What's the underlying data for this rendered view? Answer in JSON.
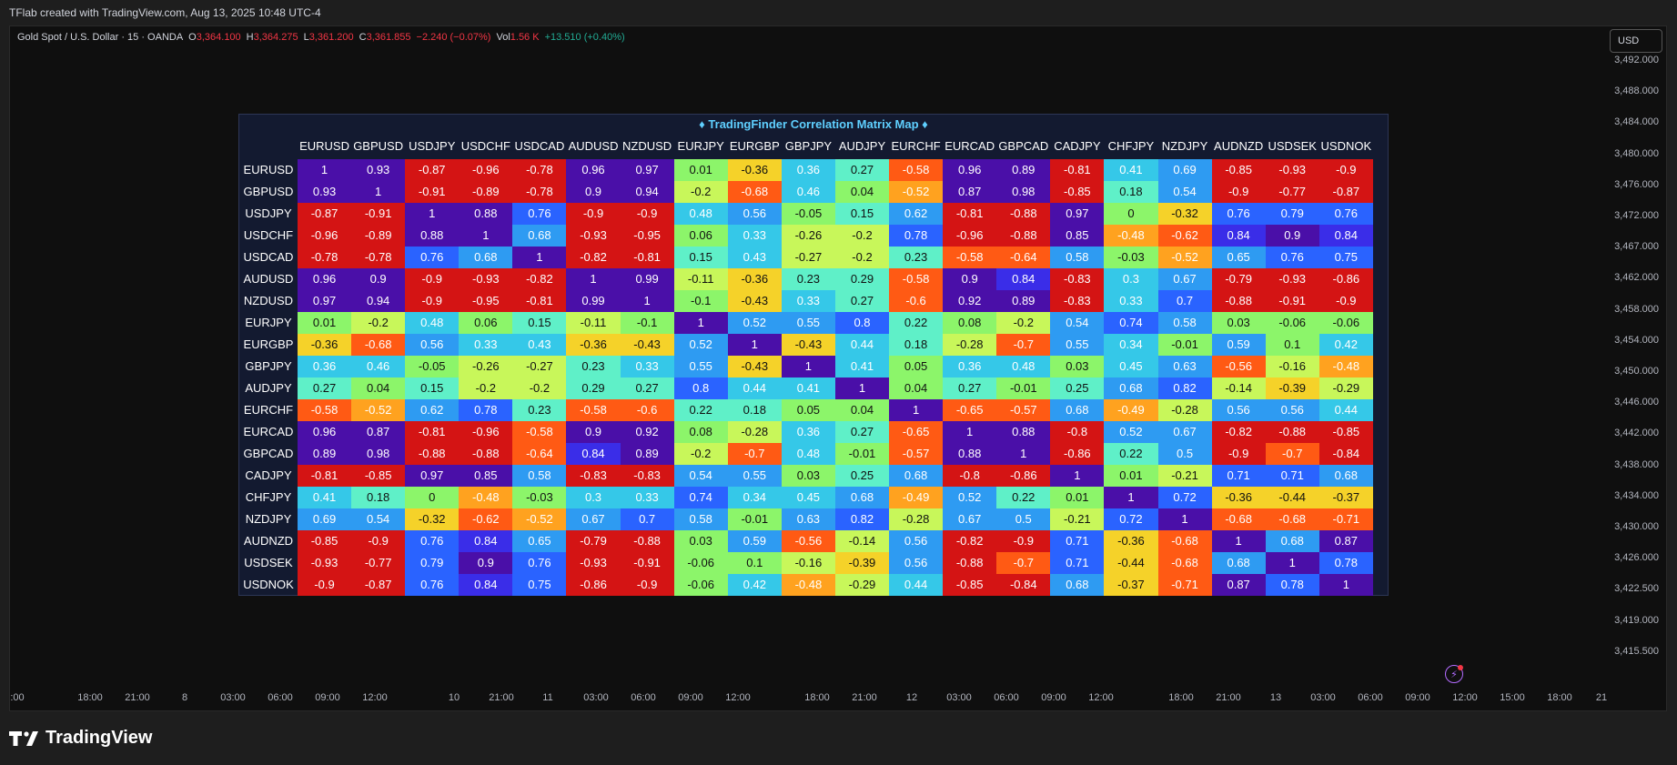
{
  "topbar": {
    "text": "TFlab created with TradingView.com, Aug 13, 2025 10:48 UTC-4"
  },
  "legend": {
    "symbol": "Gold Spot / U.S. Dollar · 15 · OANDA",
    "o_label": "O",
    "o_value": "3,364.100",
    "h_label": "H",
    "h_value": "3,364.275",
    "l_label": "L",
    "l_value": "3,361.200",
    "c_label": "C",
    "c_value": "3,361.855",
    "change": "−2.240 (−0.07%)",
    "vol_label": "Vol",
    "vol_value": "1.56 K",
    "vol_change": "+13.510 (+0.40%)"
  },
  "currency_button": "USD",
  "price_axis": [
    "3,492.000",
    "3,488.000",
    "3,484.000",
    "3,480.000",
    "3,476.000",
    "3,472.000",
    "3,467.000",
    "3,462.000",
    "3,458.000",
    "3,454.000",
    "3,450.000",
    "3,446.000",
    "3,442.000",
    "3,438.000",
    "3,434.000",
    "3,430.000",
    "3,426.000",
    "3,422.500",
    "3,419.000",
    "3,415.500"
  ],
  "time_axis": [
    {
      "label": ":00",
      "x": 8
    },
    {
      "label": "18:00",
      "x": 88
    },
    {
      "label": "21:00",
      "x": 140
    },
    {
      "label": "8",
      "x": 192
    },
    {
      "label": "03:00",
      "x": 245
    },
    {
      "label": "06:00",
      "x": 297
    },
    {
      "label": "09:00",
      "x": 349
    },
    {
      "label": "12:00",
      "x": 401
    },
    {
      "label": "10",
      "x": 488
    },
    {
      "label": "21:00",
      "x": 540
    },
    {
      "label": "11",
      "x": 591
    },
    {
      "label": "03:00",
      "x": 644
    },
    {
      "label": "06:00",
      "x": 696
    },
    {
      "label": "09:00",
      "x": 748
    },
    {
      "label": "12:00",
      "x": 800
    },
    {
      "label": "18:00",
      "x": 887
    },
    {
      "label": "21:00",
      "x": 939
    },
    {
      "label": "12",
      "x": 991
    },
    {
      "label": "03:00",
      "x": 1043
    },
    {
      "label": "06:00",
      "x": 1095
    },
    {
      "label": "09:00",
      "x": 1147
    },
    {
      "label": "12:00",
      "x": 1199
    },
    {
      "label": "18:00",
      "x": 1287
    },
    {
      "label": "21:00",
      "x": 1339
    },
    {
      "label": "13",
      "x": 1391
    },
    {
      "label": "03:00",
      "x": 1443
    },
    {
      "label": "06:00",
      "x": 1495
    },
    {
      "label": "09:00",
      "x": 1547
    },
    {
      "label": "12:00",
      "x": 1599
    },
    {
      "label": "15:00",
      "x": 1651
    },
    {
      "label": "18:00",
      "x": 1703
    },
    {
      "label": "21",
      "x": 1749
    }
  ],
  "matrix": {
    "title": "♦ TradingFinder Correlation Matrix Map ♦",
    "symbols": [
      "EURUSD",
      "GBPUSD",
      "USDJPY",
      "USDCHF",
      "USDCAD",
      "AUDUSD",
      "NZDUSD",
      "EURJPY",
      "EURGBP",
      "GBPJPY",
      "AUDJPY",
      "EURCHF",
      "EURCAD",
      "GBPCAD",
      "CADJPY",
      "CHFJPY",
      "NZDJPY",
      "AUDNZD",
      "USDSEK",
      "USDNOK"
    ],
    "values": [
      [
        "1",
        "0.93",
        "-0.87",
        "-0.96",
        "-0.78",
        "0.96",
        "0.97",
        "0.01",
        "-0.36",
        "0.36",
        "0.27",
        "-0.58",
        "0.96",
        "0.89",
        "-0.81",
        "0.41",
        "0.69",
        "-0.85",
        "-0.93",
        "-0.9"
      ],
      [
        "0.93",
        "1",
        "-0.91",
        "-0.89",
        "-0.78",
        "0.9",
        "0.94",
        "-0.2",
        "-0.68",
        "0.46",
        "0.04",
        "-0.52",
        "0.87",
        "0.98",
        "-0.85",
        "0.18",
        "0.54",
        "-0.9",
        "-0.77",
        "-0.87"
      ],
      [
        "-0.87",
        "-0.91",
        "1",
        "0.88",
        "0.76",
        "-0.9",
        "-0.9",
        "0.48",
        "0.56",
        "-0.05",
        "0.15",
        "0.62",
        "-0.81",
        "-0.88",
        "0.97",
        "0",
        "-0.32",
        "0.76",
        "0.79",
        "0.76"
      ],
      [
        "-0.96",
        "-0.89",
        "0.88",
        "1",
        "0.68",
        "-0.93",
        "-0.95",
        "0.06",
        "0.33",
        "-0.26",
        "-0.2",
        "0.78",
        "-0.96",
        "-0.88",
        "0.85",
        "-0.48",
        "-0.62",
        "0.84",
        "0.9",
        "0.84"
      ],
      [
        "-0.78",
        "-0.78",
        "0.76",
        "0.68",
        "1",
        "-0.82",
        "-0.81",
        "0.15",
        "0.43",
        "-0.27",
        "-0.2",
        "0.23",
        "-0.58",
        "-0.64",
        "0.58",
        "-0.03",
        "-0.52",
        "0.65",
        "0.76",
        "0.75"
      ],
      [
        "0.96",
        "0.9",
        "-0.9",
        "-0.93",
        "-0.82",
        "1",
        "0.99",
        "-0.11",
        "-0.36",
        "0.23",
        "0.29",
        "-0.58",
        "0.9",
        "0.84",
        "-0.83",
        "0.3",
        "0.67",
        "-0.79",
        "-0.93",
        "-0.86"
      ],
      [
        "0.97",
        "0.94",
        "-0.9",
        "-0.95",
        "-0.81",
        "0.99",
        "1",
        "-0.1",
        "-0.43",
        "0.33",
        "0.27",
        "-0.6",
        "0.92",
        "0.89",
        "-0.83",
        "0.33",
        "0.7",
        "-0.88",
        "-0.91",
        "-0.9"
      ],
      [
        "0.01",
        "-0.2",
        "0.48",
        "0.06",
        "0.15",
        "-0.11",
        "-0.1",
        "1",
        "0.52",
        "0.55",
        "0.8",
        "0.22",
        "0.08",
        "-0.2",
        "0.54",
        "0.74",
        "0.58",
        "0.03",
        "-0.06",
        "-0.06"
      ],
      [
        "-0.36",
        "-0.68",
        "0.56",
        "0.33",
        "0.43",
        "-0.36",
        "-0.43",
        "0.52",
        "1",
        "-0.43",
        "0.44",
        "0.18",
        "-0.28",
        "-0.7",
        "0.55",
        "0.34",
        "-0.01",
        "0.59",
        "0.1",
        "0.42"
      ],
      [
        "0.36",
        "0.46",
        "-0.05",
        "-0.26",
        "-0.27",
        "0.23",
        "0.33",
        "0.55",
        "-0.43",
        "1",
        "0.41",
        "0.05",
        "0.36",
        "0.48",
        "0.03",
        "0.45",
        "0.63",
        "-0.56",
        "-0.16",
        "-0.48"
      ],
      [
        "0.27",
        "0.04",
        "0.15",
        "-0.2",
        "-0.2",
        "0.29",
        "0.27",
        "0.8",
        "0.44",
        "0.41",
        "1",
        "0.04",
        "0.27",
        "-0.01",
        "0.25",
        "0.68",
        "0.82",
        "-0.14",
        "-0.39",
        "-0.29"
      ],
      [
        "-0.58",
        "-0.52",
        "0.62",
        "0.78",
        "0.23",
        "-0.58",
        "-0.6",
        "0.22",
        "0.18",
        "0.05",
        "0.04",
        "1",
        "-0.65",
        "-0.57",
        "0.68",
        "-0.49",
        "-0.28",
        "0.56",
        "0.56",
        "0.44"
      ],
      [
        "0.96",
        "0.87",
        "-0.81",
        "-0.96",
        "-0.58",
        "0.9",
        "0.92",
        "0.08",
        "-0.28",
        "0.36",
        "0.27",
        "-0.65",
        "1",
        "0.88",
        "-0.8",
        "0.52",
        "0.67",
        "-0.82",
        "-0.88",
        "-0.85"
      ],
      [
        "0.89",
        "0.98",
        "-0.88",
        "-0.88",
        "-0.64",
        "0.84",
        "0.89",
        "-0.2",
        "-0.7",
        "0.48",
        "-0.01",
        "-0.57",
        "0.88",
        "1",
        "-0.86",
        "0.22",
        "0.5",
        "-0.9",
        "-0.7",
        "-0.84"
      ],
      [
        "-0.81",
        "-0.85",
        "0.97",
        "0.85",
        "0.58",
        "-0.83",
        "-0.83",
        "0.54",
        "0.55",
        "0.03",
        "0.25",
        "0.68",
        "-0.8",
        "-0.86",
        "1",
        "0.01",
        "-0.21",
        "0.71",
        "0.71",
        "0.68"
      ],
      [
        "0.41",
        "0.18",
        "0",
        "-0.48",
        "-0.03",
        "0.3",
        "0.33",
        "0.74",
        "0.34",
        "0.45",
        "0.68",
        "-0.49",
        "0.52",
        "0.22",
        "0.01",
        "1",
        "0.72",
        "-0.36",
        "-0.44",
        "-0.37"
      ],
      [
        "0.69",
        "0.54",
        "-0.32",
        "-0.62",
        "-0.52",
        "0.67",
        "0.7",
        "0.58",
        "-0.01",
        "0.63",
        "0.82",
        "-0.28",
        "0.67",
        "0.5",
        "-0.21",
        "0.72",
        "1",
        "-0.68",
        "-0.68",
        "-0.71"
      ],
      [
        "-0.85",
        "-0.9",
        "0.76",
        "0.84",
        "0.65",
        "-0.79",
        "-0.88",
        "0.03",
        "0.59",
        "-0.56",
        "-0.14",
        "0.56",
        "-0.82",
        "-0.9",
        "0.71",
        "-0.36",
        "-0.68",
        "1",
        "0.68",
        "0.87"
      ],
      [
        "-0.93",
        "-0.77",
        "0.79",
        "0.9",
        "0.76",
        "-0.93",
        "-0.91",
        "-0.06",
        "0.1",
        "-0.16",
        "-0.39",
        "0.56",
        "-0.88",
        "-0.7",
        "0.71",
        "-0.44",
        "-0.68",
        "0.68",
        "1",
        "0.78"
      ],
      [
        "-0.9",
        "-0.87",
        "0.76",
        "0.84",
        "0.75",
        "-0.86",
        "-0.9",
        "-0.06",
        "0.42",
        "-0.48",
        "-0.29",
        "0.44",
        "-0.85",
        "-0.84",
        "0.68",
        "-0.37",
        "-0.71",
        "0.87",
        "0.78",
        "1"
      ]
    ],
    "palette": {
      "very_high_pos": "#4a0fa8",
      "high_pos": "#3a2de8",
      "pos_strong": "#2a63ff",
      "pos_mid": "#2e9bf2",
      "pos_low": "#35c8e8",
      "weak_pos": "#5ff0c8",
      "neutral": "#8cf56a",
      "weak_neg": "#c8f75a",
      "neg_low": "#f5d229",
      "neg_mid": "#ffa21f",
      "neg_strong": "#ff5a14",
      "very_neg": "#d41414"
    }
  },
  "branding": {
    "logo_text": "TradingView"
  }
}
